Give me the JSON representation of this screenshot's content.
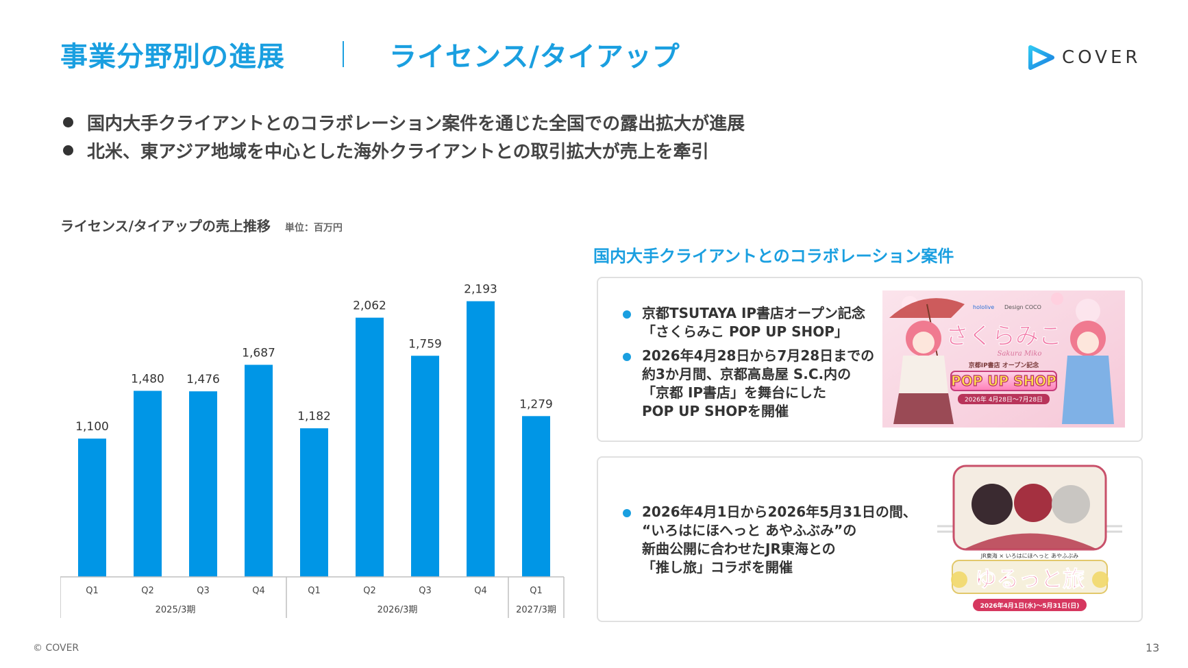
{
  "header": {
    "title": "事業分野別の進展",
    "subtitle": "ライセンス/タイアップ",
    "logo_text": "COVER"
  },
  "bullets": [
    "国内大手クライアントとのコラボレーション案件を通じた全国での露出拡大が進展",
    "北米、東アジア地域を中心とした海外クライアントとの取引拡大が売上を牽引"
  ],
  "chart_data": {
    "type": "bar",
    "title": "ライセンス/タイアップの売上推移",
    "unit": "単位：百万円",
    "categories": [
      "Q1",
      "Q2",
      "Q3",
      "Q4",
      "Q1",
      "Q2",
      "Q3",
      "Q4",
      "Q1"
    ],
    "groups": [
      {
        "label": "2025/3期",
        "count": 4
      },
      {
        "label": "2026/3期",
        "count": 4
      },
      {
        "label": "2027/3期",
        "count": 1
      }
    ],
    "values": [
      1100,
      1480,
      1476,
      1687,
      1182,
      2062,
      1759,
      2193,
      1279
    ],
    "value_labels": [
      "1,100",
      "1,480",
      "1,476",
      "1,687",
      "1,182",
      "2,062",
      "1,759",
      "2,193",
      "1,279"
    ],
    "ylim": [
      0,
      2300
    ],
    "color": "#0096e6",
    "grid": false
  },
  "collab": {
    "heading": "国内大手クライアントとのコラボレーション案件",
    "card1": {
      "items": [
        {
          "lines": [
            "京都TSUTAYA IP書店オープン記念",
            "「さくらみこ POP UP SHOP」"
          ]
        },
        {
          "lines": [
            "2026年4月28日から7月28日までの",
            "約3か月間、京都高島屋 S.C.内の",
            "「京都 IP書店」を舞台にした",
            "POP UP SHOPを開催"
          ]
        }
      ],
      "art": {
        "brand_a": "hololive",
        "brand_b": "Design COCO",
        "name": "さくらみこ",
        "name_sub": "Sakura Miko",
        "caption": "京都IP書店 オープン記念",
        "banner": "POP UP SHOP",
        "dates": "2026年 4月28日〜7月28日"
      }
    },
    "card2": {
      "items": [
        {
          "lines": [
            "2026年4月1日から2026年5月31日の間、",
            "“いろはにほへっと あやふぶみ”の",
            "新曲公開に合わせたJR東海との",
            "「推し旅」コラボを開催"
          ]
        }
      ],
      "art": {
        "caption": "JR東海 × いろはにほへっと あやふぶみ",
        "logo": "ゆるっと旅",
        "dates": "2026年4月1日(水)〜5月31日(日)"
      }
    }
  },
  "footer": {
    "copyright": "© COVER",
    "page": "13"
  }
}
